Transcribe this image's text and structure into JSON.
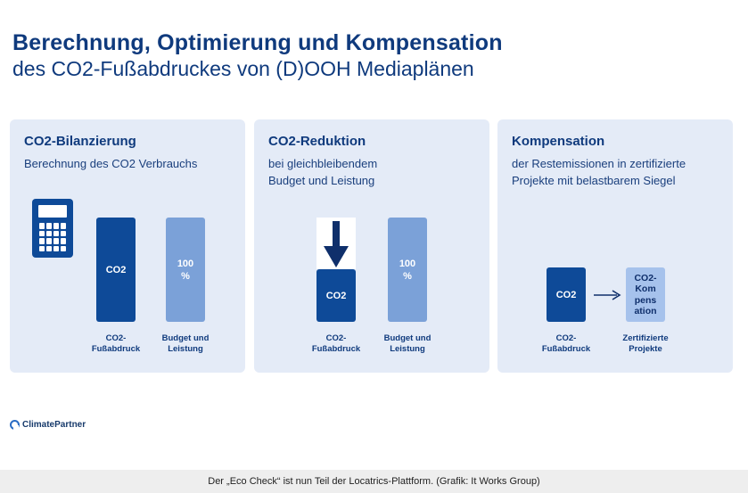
{
  "title": {
    "line1": "Berechnung, Optimierung und Kompensation",
    "line2": "des CO2-Fußabdruckes von (D)OOH Mediaplänen"
  },
  "panels": [
    {
      "heading": "CO2-Bilanzierung",
      "description": "Berechnung des CO2 Verbrauchs",
      "bar1_label": "CO2",
      "bar1_caption": "CO2-\nFußabdruck",
      "bar2_label": "100\n%",
      "bar2_caption": "Budget und\nLeistung",
      "icon": "calculator-icon"
    },
    {
      "heading": "CO2-Reduktion",
      "description": "bei gleichbleibendem\nBudget und Leistung",
      "bar1_label": "CO2",
      "bar1_caption": "CO2-\nFußabdruck",
      "bar2_label": "100\n%",
      "bar2_caption": "Budget und\nLeistung",
      "icon": "arrow-down-icon"
    },
    {
      "heading": "Kompensation",
      "description": "der Restemissionen in zertifizierte\nProjekte mit belastbarem Siegel",
      "bar1_label": "CO2",
      "bar1_caption": "CO2-\nFußabdruck",
      "bar2_label": "CO2-\nKom\npens\nation",
      "bar2_caption": "Zertifizierte\nProjekte",
      "icon": "arrow-right-icon"
    }
  ],
  "logo": {
    "text": "ClimatePartner"
  },
  "footer": {
    "caption": "Der „Eco Check“ ist nun Teil der Locatrics-Plattform. (Grafik: It Works Group)"
  },
  "colors": {
    "dark_blue": "#0e4a98",
    "mid_blue": "#7ba1d8",
    "pale_blue": "#a6c2ec",
    "panel_bg": "#e4ebf7",
    "title": "#0f3a7d"
  }
}
